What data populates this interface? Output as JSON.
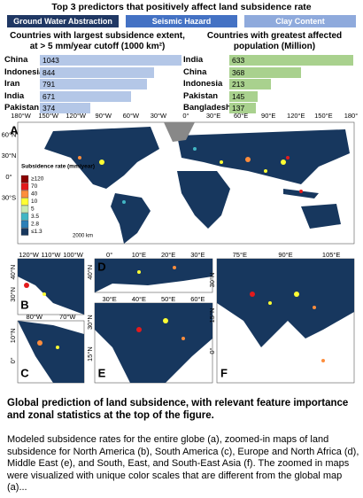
{
  "header": {
    "title": "Top 3 predictors that positively affect land subsidence rate",
    "tabs": [
      "Ground Water Abstraction",
      "Seismic Hazard",
      "Clay Content"
    ]
  },
  "chart_data": [
    {
      "type": "bar",
      "title": "Countries with largest subsidence extent, at > 5 mm/year cutoff  (1000 km²)",
      "categories": [
        "China",
        "Indonesia",
        "Iran",
        "India",
        "Pakistan"
      ],
      "values": [
        1043,
        844,
        791,
        671,
        374
      ],
      "color": "#b4c7e7"
    },
    {
      "type": "bar",
      "title": "Countries with greatest affected population (Million)",
      "categories": [
        "India",
        "China",
        "Indonesia",
        "Pakistan",
        "Bangladesh"
      ],
      "values": [
        633,
        368,
        213,
        145,
        137
      ],
      "color": "#a9d18e"
    }
  ],
  "maps": {
    "main": {
      "label": "A",
      "lon": [
        "180°W",
        "150°W",
        "120°W",
        "90°W",
        "60°W",
        "30°W",
        "0°",
        "30°E",
        "60°E",
        "90°E",
        "120°E",
        "150°E",
        "180°"
      ],
      "lat": [
        "60°N",
        "30°N",
        "0°",
        "30°S"
      ],
      "legend": {
        "title": "Subsidence rate (mm/year)",
        "items": [
          "≥120",
          "70",
          "40",
          "10",
          "5",
          "3.5",
          "2.8",
          "≤1.3"
        ],
        "colors": [
          "#8b0000",
          "#e31a1c",
          "#fd8d3c",
          "#ffff33",
          "#c7e9b4",
          "#41b6c4",
          "#2c7fb8",
          "#17375e"
        ]
      },
      "scale": "2000 km"
    },
    "b": {
      "label": "B",
      "lon": [
        "120°W",
        "110°W",
        "100°W"
      ],
      "lat": [
        "40°N",
        "30°N"
      ]
    },
    "c": {
      "label": "C",
      "lon": [
        "80°W",
        "70°W"
      ],
      "lat": [
        "10°N",
        "0°"
      ]
    },
    "d": {
      "label": "D",
      "lon": [
        "0°",
        "10°E",
        "20°E",
        "30°E"
      ],
      "lat": [
        "40°N"
      ]
    },
    "e": {
      "label": "E",
      "lon": [
        "30°E",
        "40°E",
        "50°E",
        "60°E"
      ],
      "lat": [
        "30°N",
        "15°N"
      ]
    },
    "f": {
      "label": "F",
      "lon": [
        "75°E",
        "90°E",
        "105°E"
      ],
      "lat": [
        "30°N",
        "15°N",
        "0°"
      ]
    }
  },
  "caption": {
    "title": "Global prediction of land subsidence, with relevant feature importance and zonal statistics at the top of the figure.",
    "body": "Modeled subsidence rates for the entire globe (a), zoomed-in maps of land subsidence for North America (b), South America (c), Europe and North Africa (d), Middle East (e), and South, East, and South-East Asia (f). The zoomed in maps were visualized with unique color scales that are different from the global map (a)..."
  }
}
